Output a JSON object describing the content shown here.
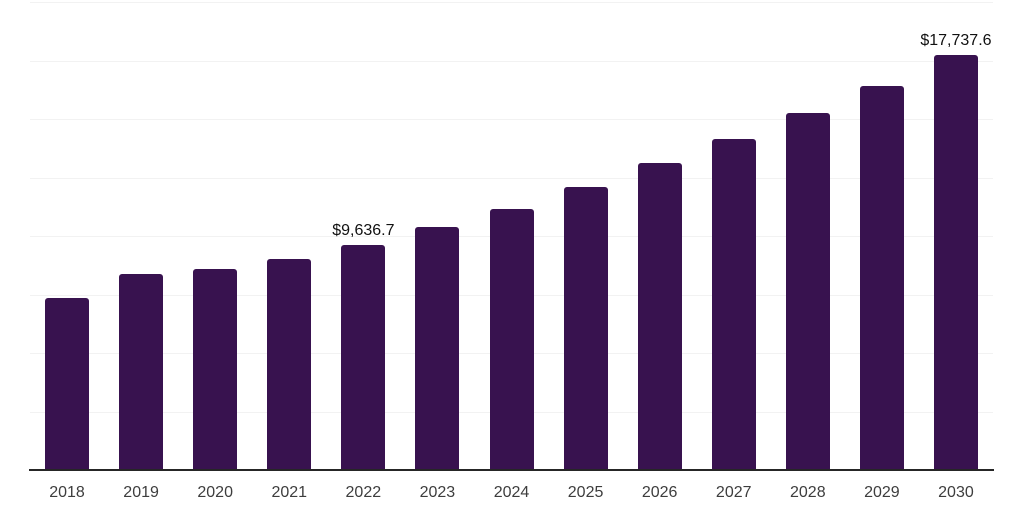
{
  "chart_data": {
    "type": "bar",
    "title": "",
    "xlabel": "",
    "ylabel": "",
    "categories": [
      "2018",
      "2019",
      "2020",
      "2021",
      "2022",
      "2023",
      "2024",
      "2025",
      "2026",
      "2027",
      "2028",
      "2029",
      "2030"
    ],
    "values": [
      7350,
      8360,
      8600,
      9030,
      9636.7,
      10380,
      11160,
      12090,
      13100,
      14160,
      15270,
      16390,
      17737.6
    ],
    "point_labels": [
      "",
      "",
      "",
      "",
      "$9,636.7",
      "",
      "",
      "",
      "",
      "",
      "",
      "",
      "$17,737.6"
    ],
    "ylim": [
      0,
      20000
    ],
    "grid_step": 2500,
    "grid": "horizontal-only",
    "legend_position": "none",
    "y_axis_tick_labels_visible": false,
    "currency_prefix": "$"
  },
  "colors": {
    "bar": "#38124f",
    "axis_line": "#262626",
    "gridline": "#f2f2f2",
    "tick_label": "#3d3d3d",
    "value_label": "#111111",
    "background": "#ffffff"
  }
}
